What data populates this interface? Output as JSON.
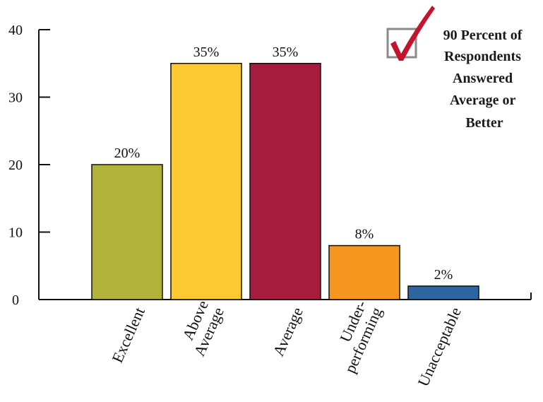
{
  "chart_data": {
    "type": "bar",
    "categories": [
      [
        "Excellent"
      ],
      [
        "Above",
        "Average"
      ],
      [
        "Average"
      ],
      [
        "Under-",
        "performing"
      ],
      [
        "Unacceptable"
      ]
    ],
    "values": [
      20,
      35,
      35,
      8,
      2
    ],
    "data_labels": [
      "20%",
      "35%",
      "35%",
      "8%",
      "2%"
    ],
    "colors": [
      "#b0b23a",
      "#fdc930",
      "#a51c3c",
      "#f7961e",
      "#2d66a0"
    ],
    "ylim": [
      0,
      40
    ],
    "yticks": [
      "0",
      "10",
      "20",
      "30",
      "40"
    ],
    "grid": false,
    "legend": "none"
  },
  "callout": {
    "icon": "checkbox-checked-icon",
    "lines": [
      "90 Percent of",
      "Respondents",
      "Answered",
      "Average or",
      "Better"
    ]
  }
}
